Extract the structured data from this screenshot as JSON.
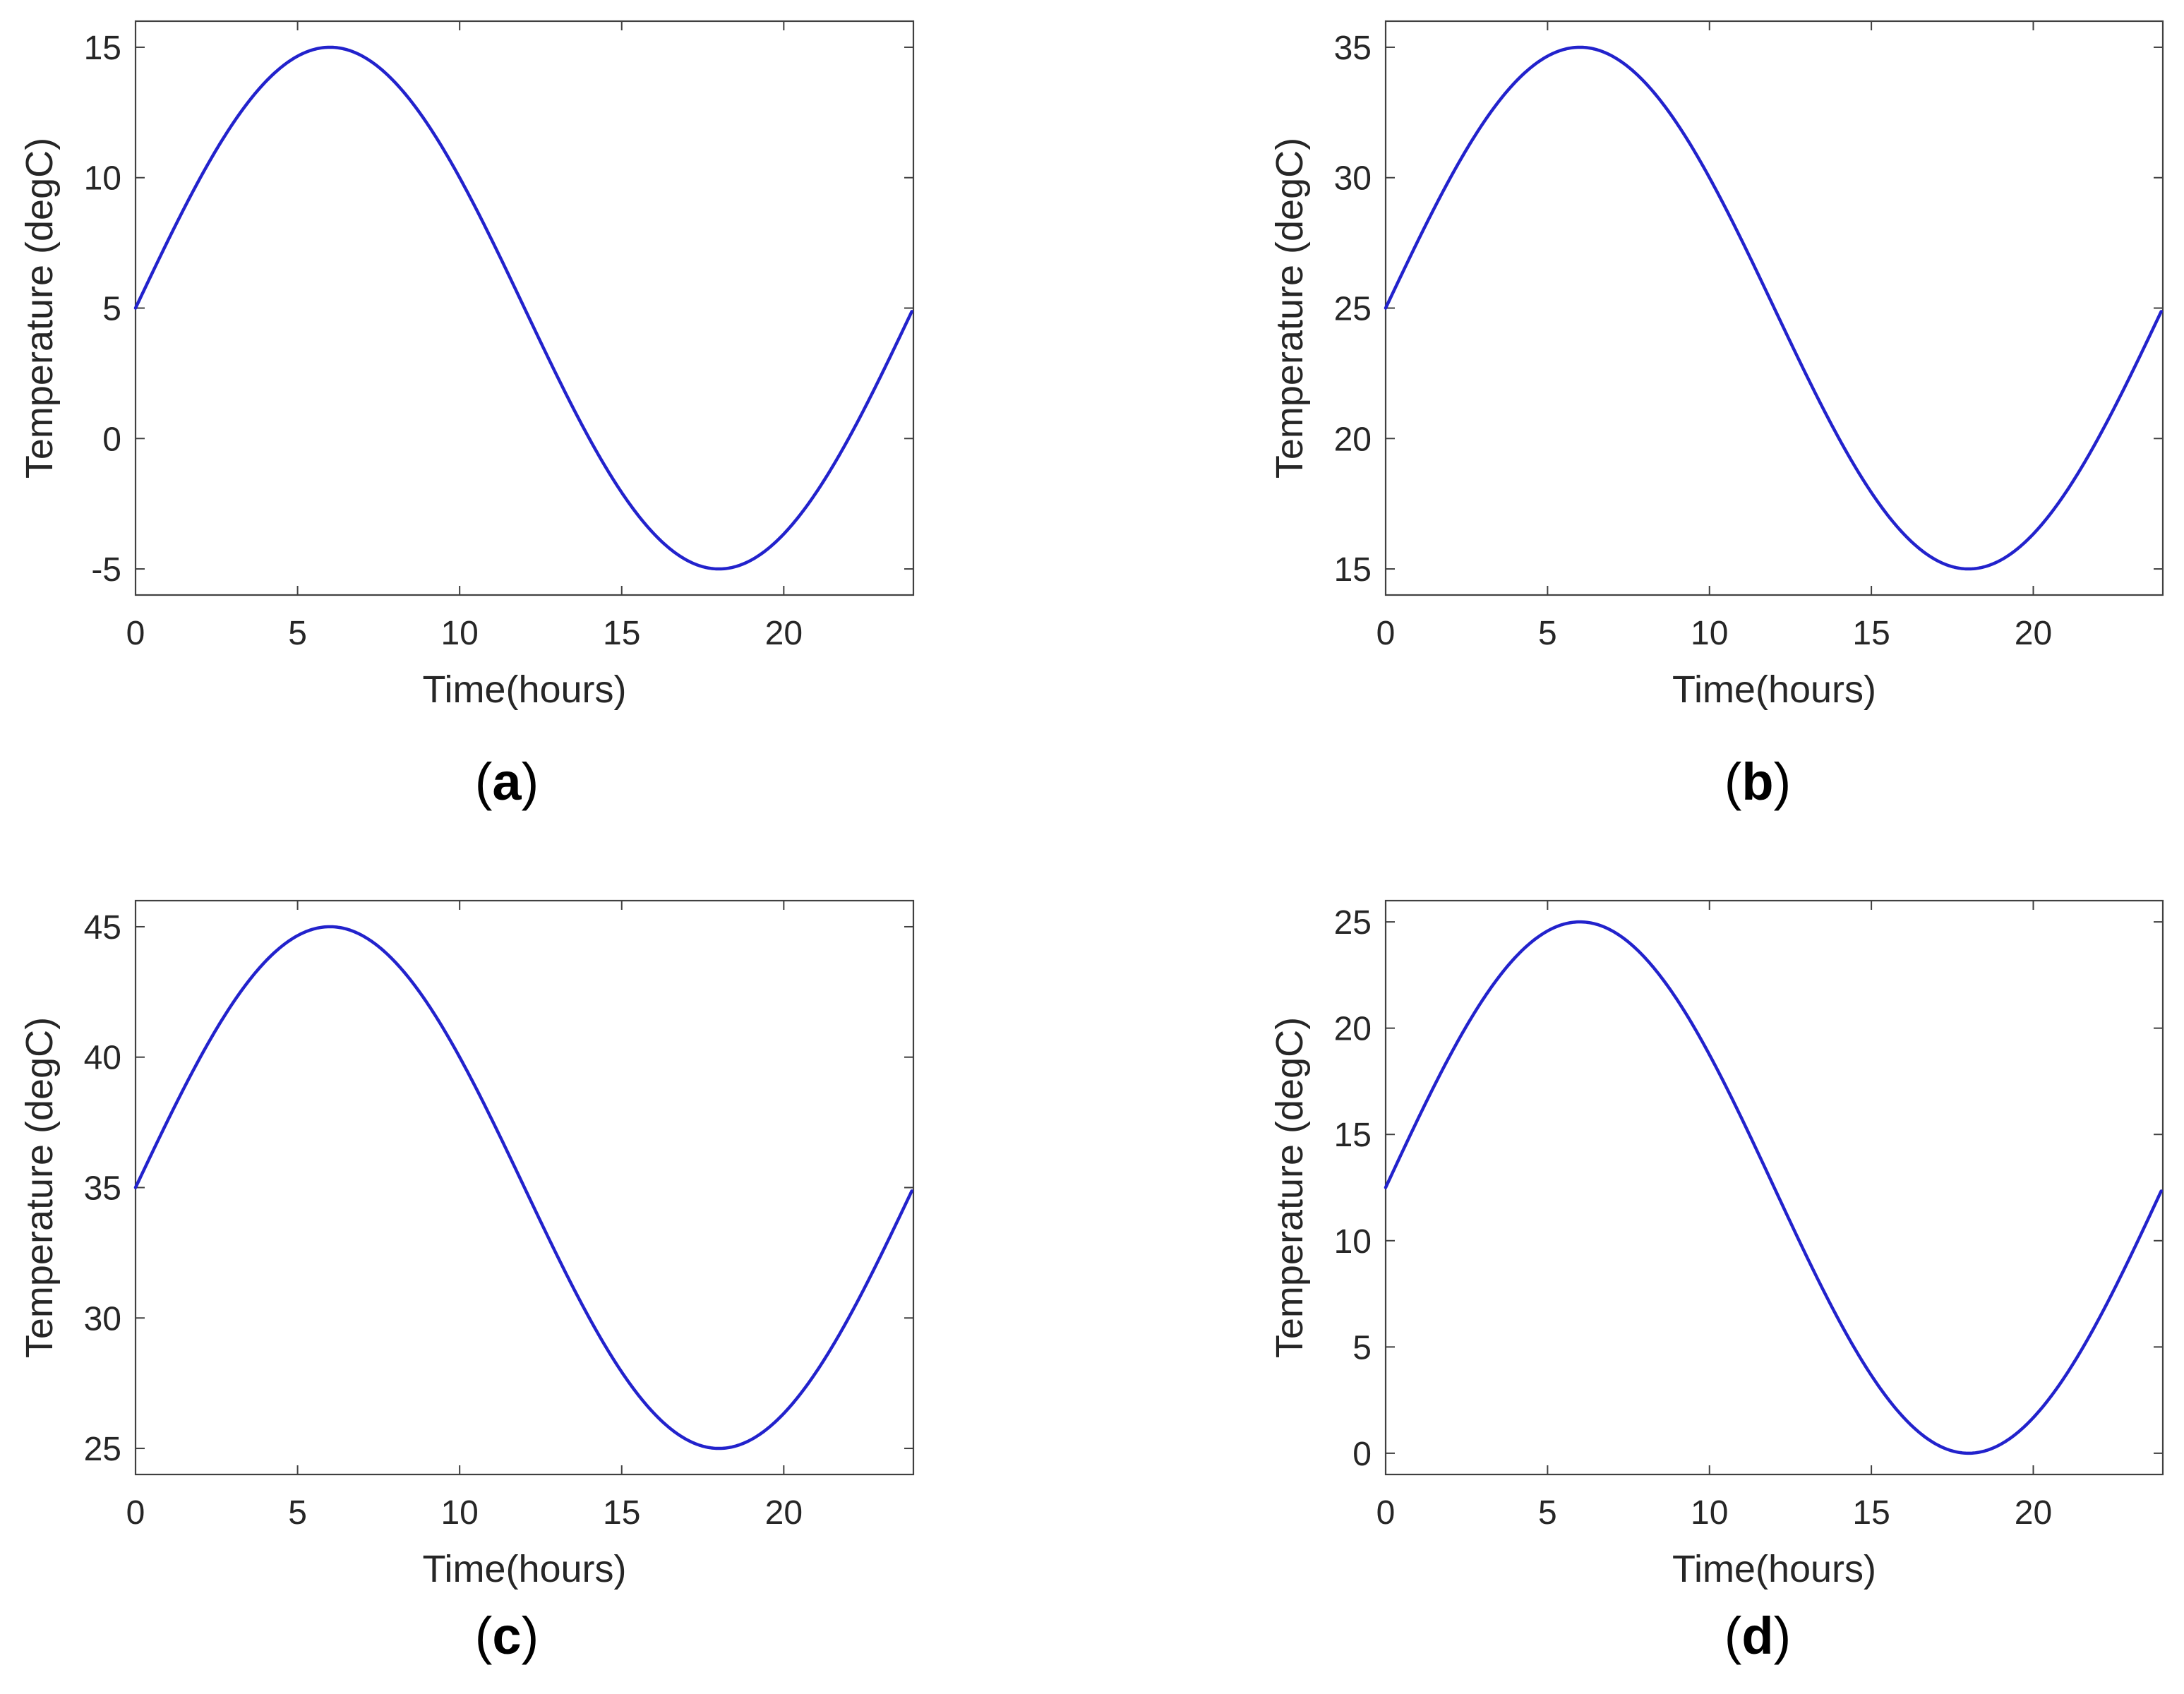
{
  "chart_data": [
    {
      "type": "line",
      "panel_label": "a",
      "xlabel": "Time(hours)",
      "ylabel": "Temperature (degC)",
      "xlim": [
        0,
        24
      ],
      "ylim": [
        -6,
        16
      ],
      "xticks": [
        0,
        5,
        10,
        15,
        20
      ],
      "yticks": [
        -5,
        0,
        5,
        10,
        15
      ],
      "grid": false,
      "color": "#2222cc",
      "series": [
        {
          "x": [
            0,
            1,
            2,
            3,
            4,
            5,
            6,
            7,
            8,
            9,
            10,
            11,
            12,
            13,
            14,
            15,
            16,
            17,
            18,
            19,
            20,
            21,
            22,
            23,
            24
          ],
          "y": [
            5.0,
            7.59,
            10.0,
            12.07,
            13.66,
            14.66,
            15.0,
            14.66,
            13.66,
            12.07,
            10.0,
            7.59,
            5.0,
            2.41,
            0.0,
            -2.07,
            -3.66,
            -4.66,
            -5.0,
            -4.66,
            -3.66,
            -2.07,
            0.0,
            2.41,
            4.7
          ]
        }
      ]
    },
    {
      "type": "line",
      "panel_label": "b",
      "xlabel": "Time(hours)",
      "ylabel": "Temperature (degC)",
      "xlim": [
        0,
        24
      ],
      "ylim": [
        14,
        36
      ],
      "xticks": [
        0,
        5,
        10,
        15,
        20
      ],
      "yticks": [
        15,
        20,
        25,
        30,
        35
      ],
      "grid": false,
      "color": "#2222cc",
      "series": [
        {
          "x": [
            0,
            1,
            2,
            3,
            4,
            5,
            6,
            7,
            8,
            9,
            10,
            11,
            12,
            13,
            14,
            15,
            16,
            17,
            18,
            19,
            20,
            21,
            22,
            23,
            24
          ],
          "y": [
            25.0,
            27.59,
            30.0,
            32.07,
            33.66,
            34.66,
            35.0,
            34.66,
            33.66,
            32.07,
            30.0,
            27.59,
            25.0,
            22.41,
            20.0,
            17.93,
            16.34,
            15.34,
            15.0,
            15.34,
            16.34,
            17.93,
            20.0,
            22.41,
            24.7
          ]
        }
      ]
    },
    {
      "type": "line",
      "panel_label": "c",
      "xlabel": "Time(hours)",
      "ylabel": "Temperature (degC)",
      "xlim": [
        0,
        24
      ],
      "ylim": [
        24,
        46
      ],
      "xticks": [
        0,
        5,
        10,
        15,
        20
      ],
      "yticks": [
        25,
        30,
        35,
        40,
        45
      ],
      "grid": false,
      "color": "#2222cc",
      "series": [
        {
          "x": [
            0,
            1,
            2,
            3,
            4,
            5,
            6,
            7,
            8,
            9,
            10,
            11,
            12,
            13,
            14,
            15,
            16,
            17,
            18,
            19,
            20,
            21,
            22,
            23,
            24
          ],
          "y": [
            35.0,
            37.59,
            40.0,
            42.07,
            43.66,
            44.66,
            45.0,
            44.66,
            43.66,
            42.07,
            40.0,
            37.59,
            35.0,
            32.41,
            30.0,
            27.93,
            26.34,
            25.34,
            25.0,
            25.34,
            26.34,
            27.93,
            30.0,
            32.41,
            34.7
          ]
        }
      ]
    },
    {
      "type": "line",
      "panel_label": "d",
      "xlabel": "Time(hours)",
      "ylabel": "Temperature (degC)",
      "xlim": [
        0,
        24
      ],
      "ylim": [
        -1,
        26
      ],
      "xticks": [
        0,
        5,
        10,
        15,
        20
      ],
      "yticks": [
        0,
        5,
        10,
        15,
        20,
        25
      ],
      "grid": false,
      "color": "#2222cc",
      "series": [
        {
          "x": [
            0,
            1,
            2,
            3,
            4,
            5,
            6,
            7,
            8,
            9,
            10,
            11,
            12,
            13,
            14,
            15,
            16,
            17,
            18,
            19,
            20,
            21,
            22,
            23,
            24
          ],
          "y": [
            12.5,
            15.74,
            18.75,
            21.34,
            23.33,
            24.57,
            25.0,
            24.57,
            23.33,
            21.34,
            18.75,
            15.74,
            12.5,
            9.26,
            6.25,
            3.66,
            1.67,
            0.43,
            0.0,
            0.43,
            1.67,
            3.66,
            6.25,
            9.26,
            12.1
          ]
        }
      ]
    }
  ]
}
